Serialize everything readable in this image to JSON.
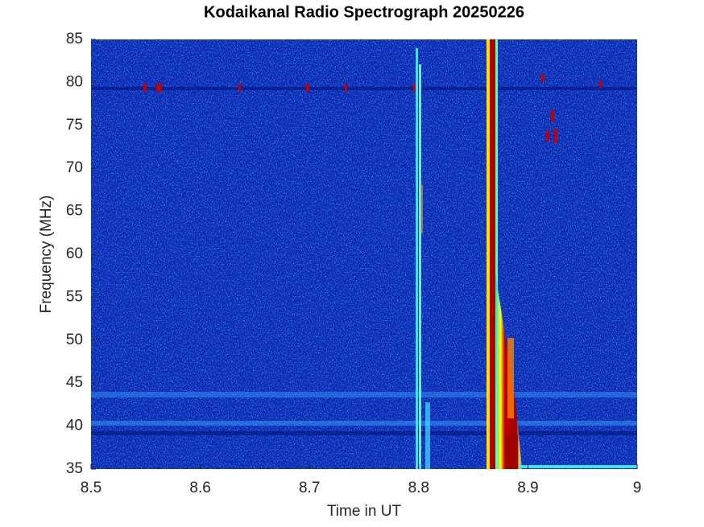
{
  "chart_data": {
    "type": "spectrogram",
    "title": "Kodaikanal Radio Spectrograph  20250226",
    "xlabel": "Time in UT",
    "ylabel": "Frequency (MHz)",
    "xlim": [
      8.5,
      9
    ],
    "xticks": [
      8.5,
      8.6,
      8.7,
      8.8,
      8.9,
      9
    ],
    "ylim": [
      35,
      85
    ],
    "yticks": [
      35,
      40,
      45,
      50,
      55,
      60,
      65,
      70,
      75,
      80,
      85
    ]
  }
}
